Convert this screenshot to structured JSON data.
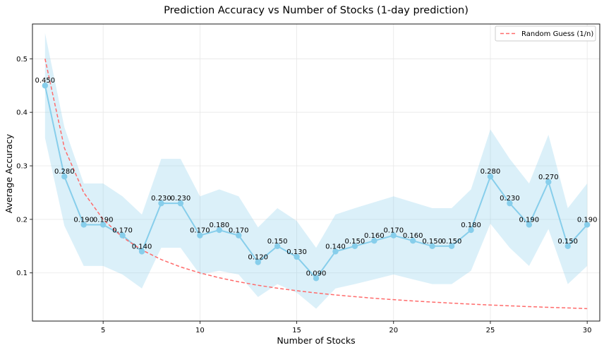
{
  "chart_data": {
    "type": "line",
    "title": "Prediction Accuracy vs Number of Stocks (1-day prediction)",
    "xlabel": "Number of Stocks",
    "ylabel": "Average Accuracy",
    "xlim": [
      1.35,
      30.65
    ],
    "ylim": [
      0.01,
      0.565
    ],
    "xticks": [
      5,
      10,
      15,
      20,
      25,
      30
    ],
    "yticks": [
      0.1,
      0.2,
      0.3,
      0.4,
      0.5
    ],
    "grid": true,
    "legend_position": "top-right",
    "x": [
      2,
      3,
      4,
      5,
      6,
      7,
      8,
      9,
      10,
      11,
      12,
      13,
      14,
      15,
      16,
      17,
      18,
      19,
      20,
      21,
      22,
      23,
      24,
      25,
      26,
      27,
      28,
      29,
      30
    ],
    "series": [
      {
        "values": [
          0.45,
          0.28,
          0.19,
          0.19,
          0.17,
          0.14,
          0.23,
          0.23,
          0.17,
          0.18,
          0.17,
          0.12,
          0.15,
          0.13,
          0.09,
          0.14,
          0.15,
          0.16,
          0.17,
          0.16,
          0.15,
          0.15,
          0.18,
          0.28,
          0.23,
          0.19,
          0.27,
          0.15,
          0.19
        ],
        "value_labels": [
          "0.450",
          "0.280",
          "0.190",
          "0.190",
          "0.170",
          "0.140",
          "0.230",
          "0.230",
          "0.170",
          "0.180",
          "0.170",
          "0.120",
          "0.150",
          "0.130",
          "0.090",
          "0.140",
          "0.150",
          "0.160",
          "0.170",
          "0.160",
          "0.150",
          "0.150",
          "0.180",
          "0.280",
          "0.230",
          "0.190",
          "0.270",
          "0.150",
          "0.190"
        ],
        "band_upper": [
          0.548,
          0.372,
          0.267,
          0.267,
          0.243,
          0.209,
          0.313,
          0.313,
          0.243,
          0.256,
          0.243,
          0.185,
          0.221,
          0.197,
          0.147,
          0.209,
          0.221,
          0.232,
          0.243,
          0.232,
          0.221,
          0.221,
          0.256,
          0.368,
          0.313,
          0.267,
          0.358,
          0.221,
          0.267
        ],
        "band_lower": [
          0.352,
          0.188,
          0.113,
          0.113,
          0.097,
          0.071,
          0.147,
          0.147,
          0.097,
          0.104,
          0.097,
          0.055,
          0.079,
          0.063,
          0.033,
          0.071,
          0.079,
          0.088,
          0.097,
          0.088,
          0.079,
          0.079,
          0.104,
          0.192,
          0.147,
          0.113,
          0.182,
          0.079,
          0.113
        ],
        "color": "#87ceeb",
        "band_color": "#87ceeb"
      },
      {
        "name": "Random Guess (1/n)",
        "values": [
          0.5,
          0.3333,
          0.25,
          0.2,
          0.1667,
          0.1429,
          0.125,
          0.1111,
          0.1,
          0.0909,
          0.0833,
          0.0769,
          0.0714,
          0.0667,
          0.0625,
          0.0588,
          0.0556,
          0.0526,
          0.05,
          0.0476,
          0.0455,
          0.0435,
          0.0417,
          0.04,
          0.0385,
          0.037,
          0.0357,
          0.0345,
          0.0333
        ],
        "color": "#ff6b6b",
        "style": "dashed"
      }
    ]
  }
}
